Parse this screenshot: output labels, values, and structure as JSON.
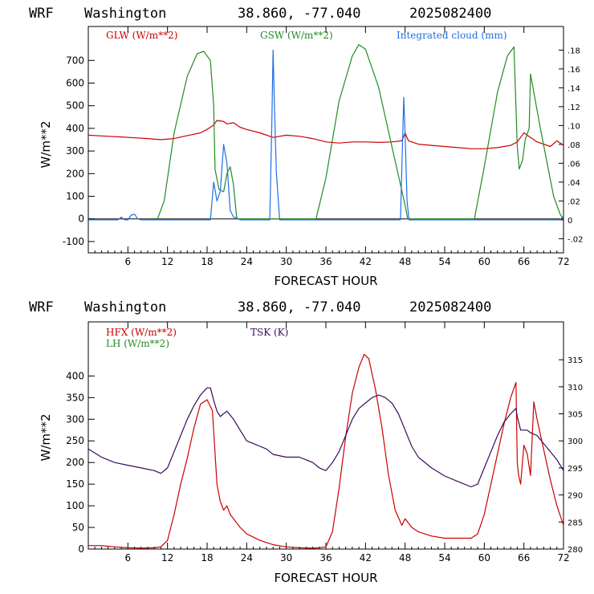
{
  "header": {
    "model": "WRF",
    "location": "Washington",
    "coords": "38.860, -77.040",
    "date": "2025082400"
  },
  "colors": {
    "glw": "#cc0000",
    "gsw": "#228b22",
    "cloud": "#1e6ee6",
    "hfx": "#cc0000",
    "lh": "#228b22",
    "tsk": "#3a0a5a",
    "axis": "#000000"
  },
  "chart_data": [
    {
      "type": "line",
      "xlabel": "FORECAST HOUR",
      "ylabel": "W/m**2",
      "xlim": [
        0,
        72
      ],
      "ylim": [
        -150,
        850
      ],
      "y2lim": [
        -0.035,
        0.205
      ],
      "xticks": [
        6,
        12,
        18,
        24,
        30,
        36,
        42,
        48,
        54,
        60,
        66,
        72
      ],
      "yticks": [
        -100,
        0,
        100,
        200,
        300,
        400,
        500,
        600,
        700
      ],
      "ytick_labels": [
        "-100",
        "0",
        "100",
        "200",
        "300",
        "400",
        "500",
        "600",
        "700"
      ],
      "y2ticks": [
        -0.02,
        0,
        0.02,
        0.04,
        0.06,
        0.08,
        0.1,
        0.12,
        0.14,
        0.16,
        0.18
      ],
      "y2tick_labels": [
        "-.02",
        "0",
        ".02",
        ".04",
        ".06",
        ".08",
        ".10",
        ".12",
        ".14",
        ".16",
        ".18"
      ],
      "zero_line": true,
      "series": [
        {
          "name": "GLW (W/m**2)",
          "axis": "left",
          "x": [
            0,
            3,
            5,
            7,
            9,
            11,
            13,
            15,
            17,
            18,
            19,
            19.5,
            20.5,
            21,
            22,
            23,
            24,
            26,
            28,
            30,
            32,
            34,
            36,
            38,
            40,
            42,
            44,
            46,
            47.5,
            48,
            48.5,
            50,
            52,
            54,
            56,
            58,
            60,
            62,
            64,
            65,
            66,
            66.5,
            67,
            68,
            69,
            70,
            71,
            72
          ],
          "y": [
            370,
            365,
            362,
            358,
            355,
            350,
            355,
            368,
            380,
            395,
            415,
            435,
            430,
            420,
            425,
            405,
            395,
            380,
            360,
            370,
            365,
            355,
            340,
            335,
            340,
            340,
            338,
            340,
            345,
            380,
            345,
            330,
            325,
            320,
            315,
            310,
            310,
            315,
            325,
            340,
            380,
            370,
            360,
            340,
            330,
            320,
            345,
            325
          ]
        },
        {
          "name": "GSW (W/m**2)",
          "axis": "left",
          "x": [
            10.5,
            11.5,
            13,
            15,
            16.5,
            17.5,
            18.5,
            19,
            19.2,
            19.8,
            20.5,
            21,
            21.5,
            22,
            22.5,
            34.5,
            36,
            38,
            40,
            41,
            42,
            44,
            46,
            48,
            48.4,
            58.5,
            60,
            62,
            63.5,
            64.5,
            65,
            65.3,
            65.8,
            66.2,
            66.8,
            67,
            67.5,
            68.5,
            69.5,
            70.5,
            71.5,
            72
          ],
          "y": [
            0,
            80,
            380,
            630,
            730,
            740,
            700,
            500,
            220,
            130,
            120,
            200,
            230,
            150,
            0,
            0,
            180,
            520,
            720,
            770,
            750,
            580,
            320,
            60,
            0,
            0,
            230,
            560,
            720,
            760,
            320,
            220,
            260,
            350,
            400,
            640,
            560,
            400,
            250,
            100,
            20,
            0
          ]
        },
        {
          "name": "Integrated cloud (mm)",
          "axis": "right",
          "x": [
            0,
            4.5,
            5,
            5.5,
            6,
            6.5,
            7,
            7.5,
            8,
            18.5,
            19,
            19.5,
            20,
            20.5,
            21,
            21.5,
            22,
            22.5,
            23,
            27.5,
            27.8,
            28,
            28.2,
            28.5,
            29,
            29.5,
            47.3,
            47.6,
            47.8,
            48,
            48.3,
            48.6,
            71.5,
            72
          ],
          "y": [
            0,
            0,
            0.003,
            0,
            0,
            0.005,
            0.006,
            0.001,
            0,
            0,
            0.04,
            0.02,
            0.03,
            0.08,
            0.06,
            0.01,
            0.003,
            0.002,
            0,
            0,
            0.1,
            0.18,
            0.12,
            0.05,
            0,
            0,
            0,
            0.08,
            0.13,
            0.09,
            0.02,
            0,
            0,
            0.004
          ]
        }
      ]
    },
    {
      "type": "line",
      "xlabel": "FORECAST HOUR",
      "ylabel": "W/m**2",
      "xlim": [
        0,
        72
      ],
      "ylim": [
        0,
        525
      ],
      "y2lim": [
        280,
        322
      ],
      "xticks": [
        6,
        12,
        18,
        24,
        30,
        36,
        42,
        48,
        54,
        60,
        66,
        72
      ],
      "yticks": [
        0,
        50,
        100,
        150,
        200,
        250,
        300,
        350,
        400
      ],
      "ytick_labels": [
        "0",
        "50",
        "100",
        "150",
        "200",
        "250",
        "300",
        "350",
        "400"
      ],
      "y2ticks": [
        280,
        285,
        290,
        295,
        300,
        305,
        310,
        315
      ],
      "y2tick_labels": [
        "280",
        "285",
        "290",
        "295",
        "300",
        "305",
        "310",
        "315"
      ],
      "series": [
        {
          "name": "HFX (W/m**2)",
          "axis": "left",
          "x": [
            0,
            2,
            4,
            6,
            8,
            10,
            11,
            12,
            13,
            14,
            15,
            16,
            17,
            18,
            18.8,
            19.5,
            20,
            20.5,
            21,
            21.5,
            22,
            23,
            24,
            26,
            28,
            30,
            32,
            34,
            35,
            36,
            37,
            38,
            39,
            40,
            41,
            41.8,
            42.5,
            43.5,
            44.5,
            45.5,
            46.5,
            47.5,
            48,
            49,
            50,
            52,
            54,
            56,
            58,
            59,
            60,
            61,
            62,
            63,
            64,
            64.8,
            65,
            65.2,
            65.5,
            66,
            66.5,
            67,
            67.5,
            68,
            69,
            70,
            71,
            72
          ],
          "y": [
            8,
            8,
            5,
            3,
            2,
            3,
            5,
            20,
            80,
            150,
            210,
            280,
            335,
            345,
            320,
            150,
            110,
            90,
            100,
            80,
            70,
            50,
            35,
            20,
            10,
            5,
            3,
            2,
            3,
            5,
            40,
            140,
            260,
            360,
            420,
            450,
            440,
            370,
            280,
            170,
            90,
            55,
            70,
            50,
            40,
            30,
            25,
            25,
            25,
            35,
            80,
            150,
            220,
            290,
            350,
            385,
            200,
            170,
            150,
            240,
            220,
            170,
            340,
            300,
            230,
            160,
            100,
            55
          ]
        },
        {
          "name": "LH  (W/m**2)",
          "axis": "left",
          "x": [],
          "y": []
        },
        {
          "name": "TSK (K)",
          "axis": "right",
          "x": [
            0,
            2,
            4,
            6,
            8,
            10,
            11,
            12,
            13,
            14,
            15,
            16,
            17,
            18,
            18.5,
            19,
            19.5,
            20,
            20.5,
            21,
            22,
            23,
            24,
            25,
            26,
            27,
            28,
            30,
            32,
            34,
            35,
            36,
            37,
            38,
            39,
            40,
            41,
            42,
            43,
            44,
            45,
            46,
            47,
            48,
            49,
            50,
            52,
            54,
            56,
            58,
            59,
            60,
            61,
            62,
            63,
            64,
            64.8,
            65,
            65.5,
            66,
            66.5,
            67,
            68,
            69,
            70,
            71,
            72
          ],
          "y": [
            298.5,
            297,
            296,
            295.5,
            295,
            294.5,
            294,
            295,
            298,
            301,
            304,
            306.5,
            308.5,
            309.8,
            309.8,
            307.5,
            305.5,
            304.5,
            305,
            305.5,
            304,
            302,
            300,
            299.5,
            299,
            298.5,
            297.5,
            297,
            297,
            296,
            295,
            294.5,
            296,
            298,
            301,
            304,
            306,
            307,
            308,
            308.5,
            308,
            307,
            305,
            302,
            299,
            297,
            295,
            293.5,
            292.5,
            291.5,
            292,
            295,
            298,
            301,
            303.5,
            305,
            306,
            304.5,
            302,
            302,
            302,
            301.5,
            301,
            299.5,
            298,
            296.5,
            294.5
          ]
        }
      ]
    }
  ]
}
